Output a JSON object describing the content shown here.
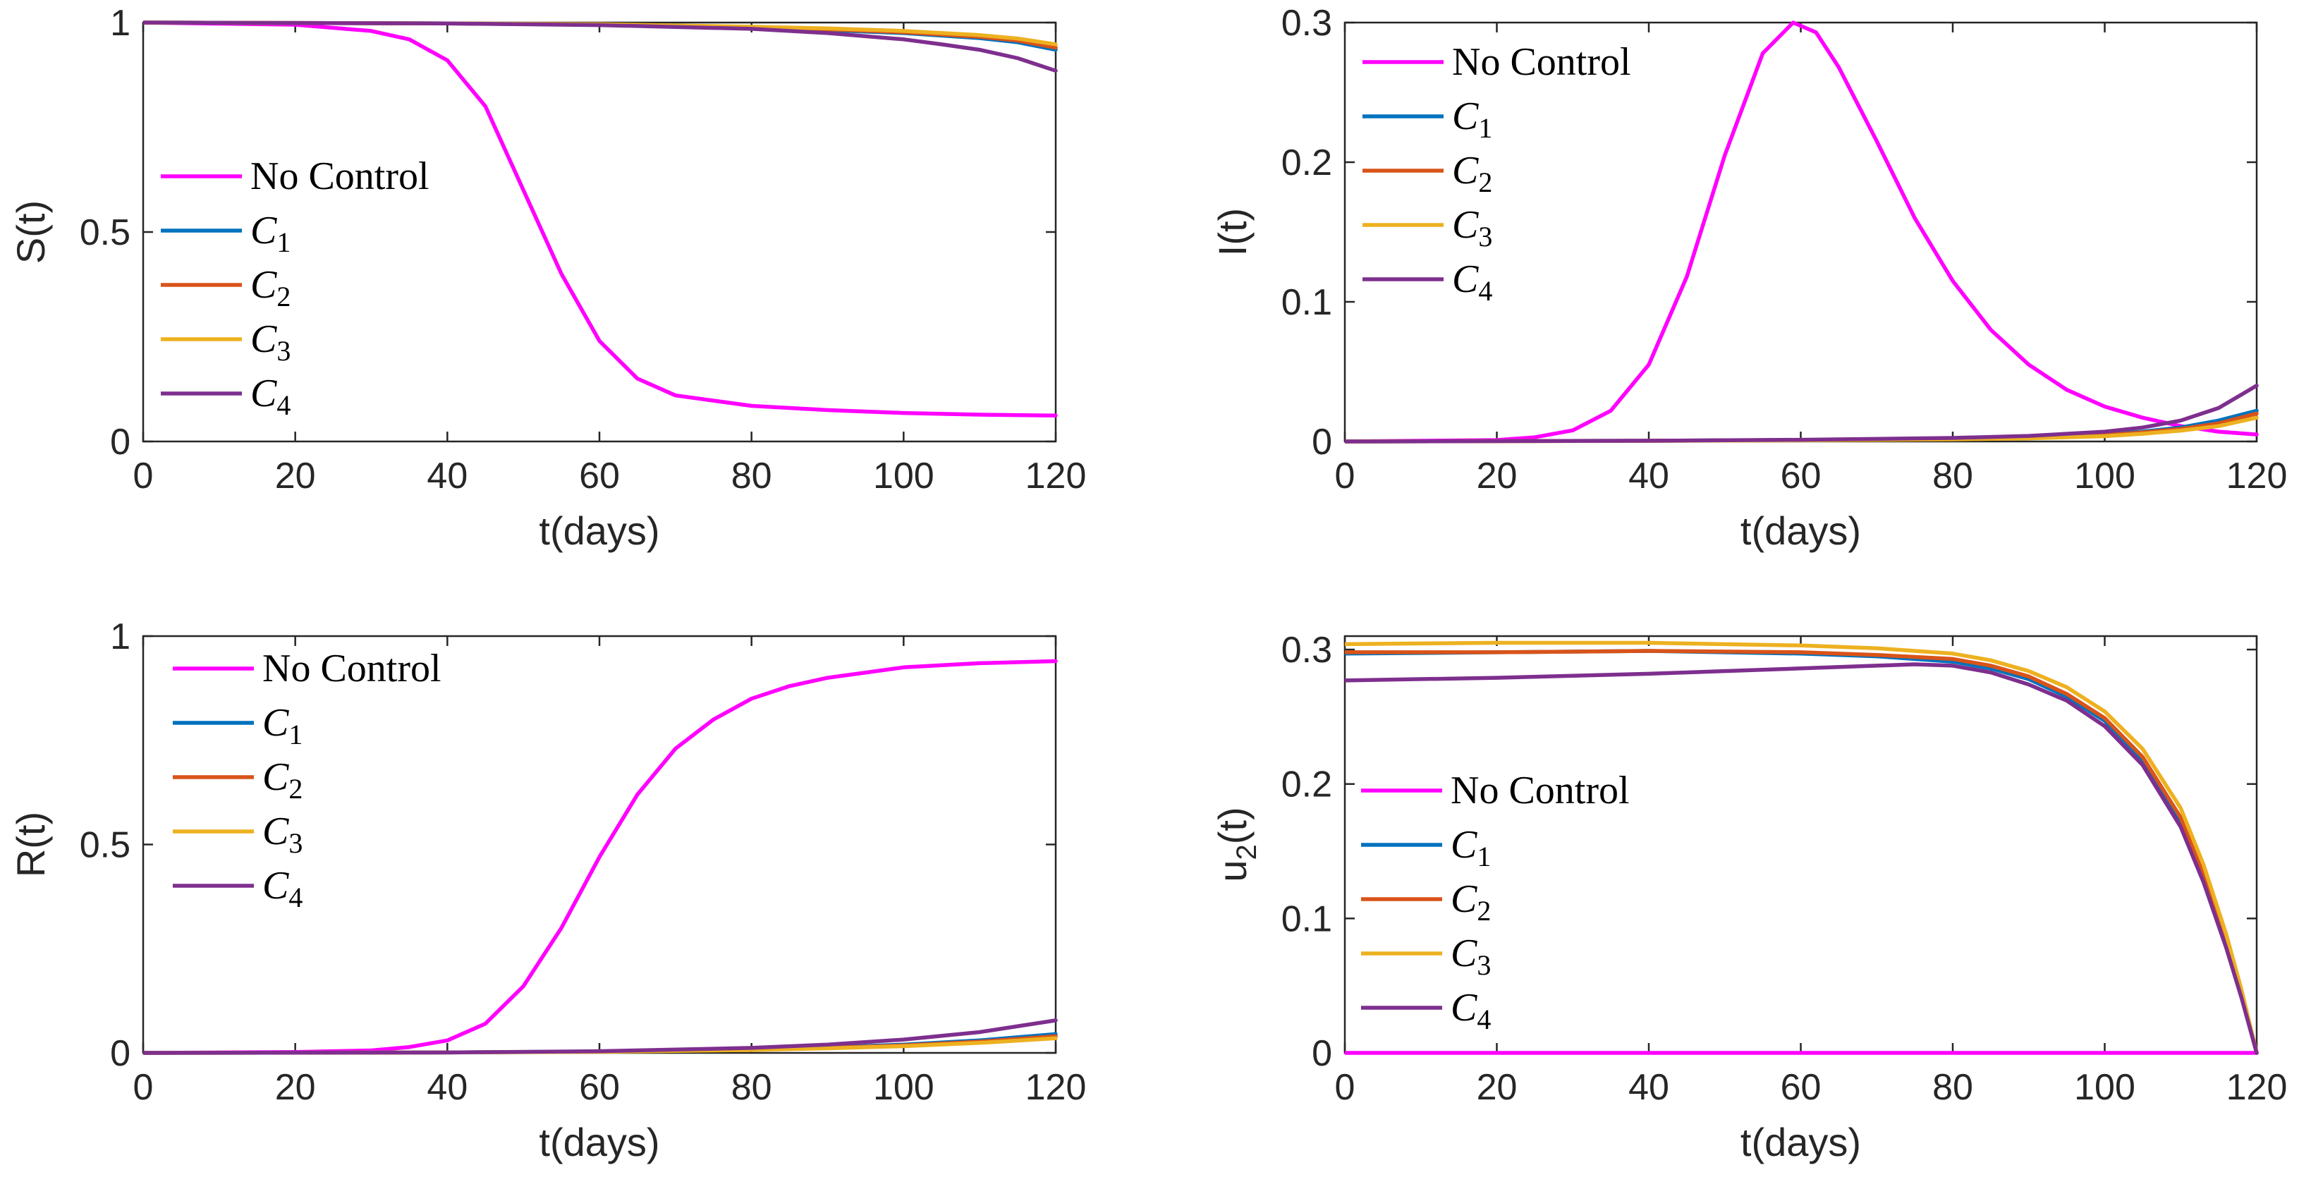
{
  "figure_title": "",
  "chart_data": [
    {
      "type": "line",
      "panel": "top-left",
      "xlabel": "t(days)",
      "ylabel": "S(t)",
      "xlim": [
        0,
        120
      ],
      "ylim": [
        0,
        1
      ],
      "xticks": [
        "0",
        "20",
        "40",
        "60",
        "80",
        "100",
        "120"
      ],
      "yticks": [
        "0",
        "0.5",
        "1"
      ],
      "legend_position": "left-middle",
      "series": [
        {
          "name": "No Control",
          "label_main": "No Control",
          "label_sub": "",
          "color": "#ff00ff",
          "x": [
            0,
            20,
            30,
            35,
            40,
            45,
            50,
            55,
            60,
            65,
            70,
            80,
            90,
            100,
            110,
            120
          ],
          "y": [
            1.0,
            0.995,
            0.98,
            0.96,
            0.91,
            0.8,
            0.6,
            0.4,
            0.24,
            0.15,
            0.11,
            0.085,
            0.075,
            0.068,
            0.064,
            0.062
          ]
        },
        {
          "name": "C1",
          "label_main": "C",
          "label_sub": "1",
          "color": "#0072bd",
          "x": [
            0,
            40,
            60,
            80,
            90,
            100,
            110,
            115,
            120
          ],
          "y": [
            1.0,
            0.998,
            0.995,
            0.988,
            0.982,
            0.975,
            0.963,
            0.953,
            0.935
          ]
        },
        {
          "name": "C2",
          "label_main": "C",
          "label_sub": "2",
          "color": "#d95319",
          "x": [
            0,
            40,
            60,
            80,
            90,
            100,
            110,
            115,
            120
          ],
          "y": [
            1.0,
            0.998,
            0.995,
            0.989,
            0.984,
            0.977,
            0.966,
            0.957,
            0.94
          ]
        },
        {
          "name": "C3",
          "label_main": "C",
          "label_sub": "3",
          "color": "#edb120",
          "x": [
            0,
            40,
            60,
            80,
            90,
            100,
            110,
            115,
            120
          ],
          "y": [
            1.0,
            0.998,
            0.996,
            0.99,
            0.986,
            0.98,
            0.97,
            0.962,
            0.948
          ]
        },
        {
          "name": "C4",
          "label_main": "C",
          "label_sub": "4",
          "color": "#7e2f8e",
          "x": [
            0,
            40,
            60,
            80,
            90,
            100,
            105,
            110,
            115,
            120
          ],
          "y": [
            1.0,
            0.998,
            0.994,
            0.985,
            0.975,
            0.96,
            0.948,
            0.935,
            0.915,
            0.885
          ]
        }
      ]
    },
    {
      "type": "line",
      "panel": "top-right",
      "xlabel": "t(days)",
      "ylabel": "I(t)",
      "xlim": [
        0,
        120
      ],
      "ylim": [
        0,
        0.3
      ],
      "xticks": [
        "0",
        "20",
        "40",
        "60",
        "80",
        "100",
        "120"
      ],
      "yticks": [
        "0",
        "0.1",
        "0.2",
        "0.3"
      ],
      "legend_position": "top-left",
      "series": [
        {
          "name": "No Control",
          "label_main": "No Control",
          "label_sub": "",
          "color": "#ff00ff",
          "x": [
            0,
            20,
            25,
            30,
            35,
            40,
            45,
            50,
            55,
            59,
            62,
            65,
            70,
            75,
            80,
            85,
            90,
            95,
            100,
            105,
            110,
            115,
            120
          ],
          "y": [
            0,
            0.001,
            0.003,
            0.008,
            0.022,
            0.055,
            0.118,
            0.205,
            0.278,
            0.3,
            0.293,
            0.268,
            0.215,
            0.16,
            0.115,
            0.08,
            0.055,
            0.037,
            0.025,
            0.017,
            0.011,
            0.007,
            0.005
          ]
        },
        {
          "name": "C1",
          "label_main": "C",
          "label_sub": "1",
          "color": "#0072bd",
          "x": [
            0,
            40,
            60,
            80,
            90,
            100,
            105,
            110,
            115,
            120
          ],
          "y": [
            0,
            0.0005,
            0.001,
            0.002,
            0.003,
            0.005,
            0.007,
            0.01,
            0.015,
            0.022
          ]
        },
        {
          "name": "C2",
          "label_main": "C",
          "label_sub": "2",
          "color": "#d95319",
          "x": [
            0,
            40,
            60,
            80,
            90,
            100,
            105,
            110,
            115,
            120
          ],
          "y": [
            0,
            0.0005,
            0.001,
            0.0018,
            0.0027,
            0.0045,
            0.0065,
            0.009,
            0.013,
            0.02
          ]
        },
        {
          "name": "C3",
          "label_main": "C",
          "label_sub": "3",
          "color": "#edb120",
          "x": [
            0,
            40,
            60,
            80,
            90,
            100,
            105,
            110,
            115,
            120
          ],
          "y": [
            0,
            0.0004,
            0.0008,
            0.0015,
            0.0022,
            0.0038,
            0.0055,
            0.0078,
            0.011,
            0.017
          ]
        },
        {
          "name": "C4",
          "label_main": "C",
          "label_sub": "4",
          "color": "#7e2f8e",
          "x": [
            0,
            40,
            60,
            80,
            90,
            100,
            105,
            110,
            115,
            120
          ],
          "y": [
            0,
            0.0005,
            0.0012,
            0.0025,
            0.004,
            0.007,
            0.01,
            0.015,
            0.024,
            0.04
          ]
        }
      ]
    },
    {
      "type": "line",
      "panel": "bottom-left",
      "xlabel": "t(days)",
      "ylabel": "R(t)",
      "xlim": [
        0,
        120
      ],
      "ylim": [
        0,
        1
      ],
      "xticks": [
        "0",
        "20",
        "40",
        "60",
        "80",
        "100",
        "120"
      ],
      "yticks": [
        "0",
        "0.5",
        "1"
      ],
      "legend_position": "top-left",
      "series": [
        {
          "name": "No Control",
          "label_main": "No Control",
          "label_sub": "",
          "color": "#ff00ff",
          "x": [
            0,
            20,
            30,
            35,
            40,
            45,
            50,
            55,
            60,
            65,
            70,
            75,
            80,
            85,
            90,
            100,
            110,
            120
          ],
          "y": [
            0,
            0.002,
            0.006,
            0.014,
            0.03,
            0.07,
            0.16,
            0.3,
            0.47,
            0.62,
            0.73,
            0.8,
            0.85,
            0.88,
            0.9,
            0.925,
            0.935,
            0.94
          ]
        },
        {
          "name": "C1",
          "label_main": "C",
          "label_sub": "1",
          "color": "#0072bd",
          "x": [
            0,
            40,
            60,
            80,
            90,
            100,
            110,
            120
          ],
          "y": [
            0,
            0.001,
            0.003,
            0.008,
            0.013,
            0.02,
            0.03,
            0.045
          ]
        },
        {
          "name": "C2",
          "label_main": "C",
          "label_sub": "2",
          "color": "#d95319",
          "x": [
            0,
            40,
            60,
            80,
            90,
            100,
            110,
            120
          ],
          "y": [
            0,
            0.001,
            0.003,
            0.008,
            0.012,
            0.018,
            0.027,
            0.04
          ]
        },
        {
          "name": "C3",
          "label_main": "C",
          "label_sub": "3",
          "color": "#edb120",
          "x": [
            0,
            40,
            60,
            80,
            90,
            100,
            110,
            120
          ],
          "y": [
            0,
            0.001,
            0.0025,
            0.007,
            0.011,
            0.016,
            0.024,
            0.035
          ]
        },
        {
          "name": "C4",
          "label_main": "C",
          "label_sub": "4",
          "color": "#7e2f8e",
          "x": [
            0,
            40,
            60,
            80,
            90,
            100,
            110,
            120
          ],
          "y": [
            0,
            0.001,
            0.004,
            0.012,
            0.02,
            0.032,
            0.05,
            0.078
          ]
        }
      ]
    },
    {
      "type": "line",
      "panel": "bottom-right",
      "xlabel": "t(days)",
      "ylabel_main": "u",
      "ylabel_sub": "2",
      "ylabel_tail": "(t)",
      "xlim": [
        0,
        120
      ],
      "ylim": [
        0,
        0.3
      ],
      "y_axis_top": 0.31,
      "xticks": [
        "0",
        "20",
        "40",
        "60",
        "80",
        "100",
        "120"
      ],
      "yticks": [
        "0",
        "0.1",
        "0.2",
        "0.3"
      ],
      "legend_position": "left-middle",
      "series": [
        {
          "name": "No Control",
          "label_main": "No Control",
          "label_sub": "",
          "color": "#ff00ff",
          "x": [
            0,
            120
          ],
          "y": [
            0,
            0
          ]
        },
        {
          "name": "C1",
          "label_main": "C",
          "label_sub": "1",
          "color": "#0072bd",
          "x": [
            0,
            20,
            40,
            60,
            70,
            80,
            85,
            90,
            95,
            100,
            105,
            110,
            113,
            116,
            118,
            120
          ],
          "y": [
            0.297,
            0.298,
            0.299,
            0.297,
            0.295,
            0.291,
            0.286,
            0.278,
            0.265,
            0.247,
            0.218,
            0.172,
            0.13,
            0.08,
            0.042,
            0
          ]
        },
        {
          "name": "C2",
          "label_main": "C",
          "label_sub": "2",
          "color": "#d95319",
          "x": [
            0,
            20,
            40,
            60,
            70,
            80,
            85,
            90,
            95,
            100,
            105,
            110,
            113,
            116,
            118,
            120
          ],
          "y": [
            0.298,
            0.298,
            0.299,
            0.298,
            0.296,
            0.293,
            0.288,
            0.28,
            0.267,
            0.249,
            0.22,
            0.175,
            0.133,
            0.082,
            0.043,
            0
          ]
        },
        {
          "name": "C3",
          "label_main": "C",
          "label_sub": "3",
          "color": "#edb120",
          "x": [
            0,
            20,
            40,
            60,
            70,
            80,
            85,
            90,
            95,
            100,
            105,
            110,
            113,
            116,
            118,
            120
          ],
          "y": [
            0.304,
            0.305,
            0.305,
            0.303,
            0.301,
            0.297,
            0.292,
            0.284,
            0.272,
            0.254,
            0.226,
            0.182,
            0.14,
            0.088,
            0.047,
            0
          ]
        },
        {
          "name": "C4",
          "label_main": "C",
          "label_sub": "4",
          "color": "#7e2f8e",
          "x": [
            0,
            20,
            40,
            60,
            70,
            75,
            80,
            85,
            90,
            95,
            100,
            105,
            110,
            113,
            116,
            118,
            120
          ],
          "y": [
            0.277,
            0.279,
            0.282,
            0.286,
            0.288,
            0.289,
            0.288,
            0.283,
            0.274,
            0.262,
            0.243,
            0.214,
            0.168,
            0.127,
            0.078,
            0.041,
            0
          ]
        }
      ]
    }
  ]
}
